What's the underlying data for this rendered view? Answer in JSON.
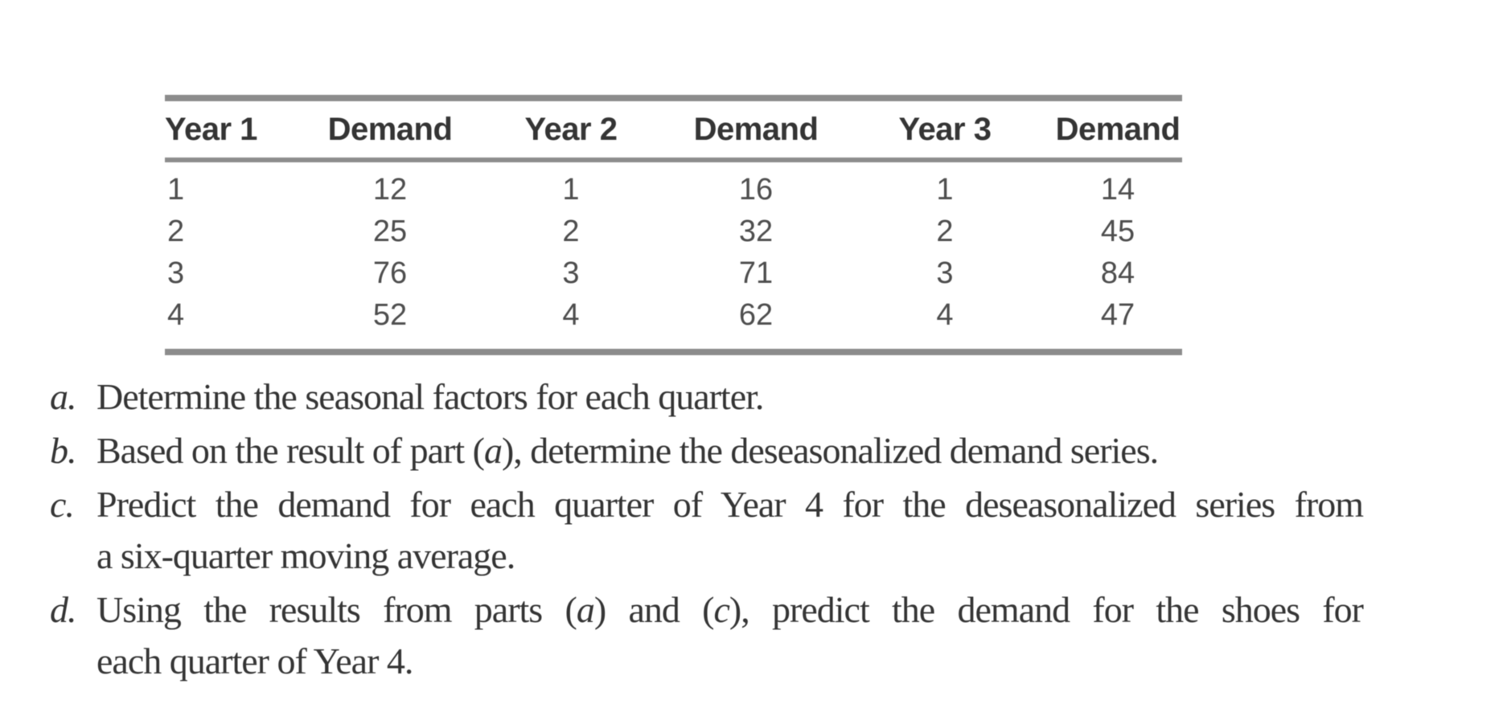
{
  "colors": {
    "rule": "#8c8c8c",
    "table_header_text": "#343434",
    "table_data_text": "#4d4d4d",
    "body_text": "#343434"
  },
  "table": {
    "columns": [
      "Year 1",
      "Demand",
      "Year 2",
      "Demand",
      "Year 3",
      "Demand"
    ],
    "rows": [
      [
        "1",
        "12",
        "1",
        "16",
        "1",
        "14"
      ],
      [
        "2",
        "25",
        "2",
        "32",
        "2",
        "45"
      ],
      [
        "3",
        "76",
        "3",
        "71",
        "3",
        "84"
      ],
      [
        "4",
        "52",
        "4",
        "62",
        "4",
        "47"
      ]
    ]
  },
  "questions": {
    "a": {
      "label": "a.",
      "text": "Determine the seasonal factors for each quarter."
    },
    "b": {
      "label": "b.",
      "p1": "Based on the result of part (",
      "i1": "a",
      "p2": "), determine the deseasonalized demand series."
    },
    "c": {
      "label": "c.",
      "line1": "Predict the demand for each quarter of Year 4 for the deseasonalized series from",
      "line2": "a six-quarter moving average."
    },
    "d": {
      "label": "d.",
      "p1": "Using the results from parts (",
      "i1": "a",
      "p2": ") and (",
      "i2": "c",
      "p3": "), predict the demand for the shoes for",
      "line2": "each quarter of Year 4."
    }
  }
}
